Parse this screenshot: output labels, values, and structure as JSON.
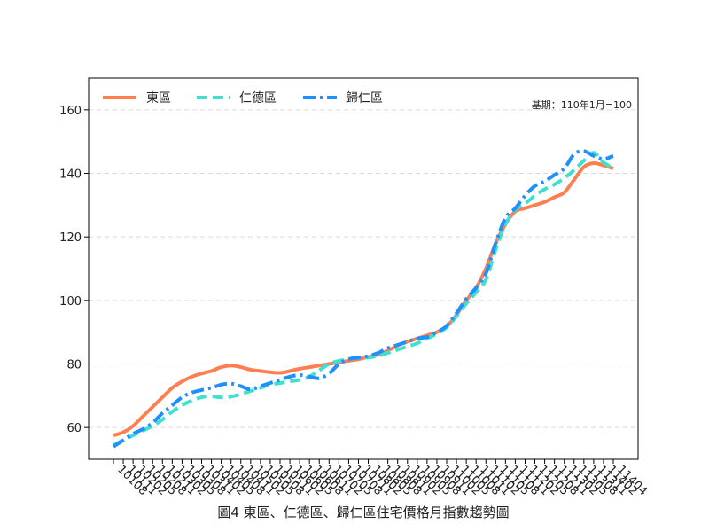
{
  "chart_data": {
    "type": "line",
    "title": "",
    "xlabel": "圖4 東區、仁德區、歸仁區住宅價格月指數趨勢圖",
    "ylabel": "",
    "note": "基期：110年1月=100",
    "ylim": [
      50,
      170
    ],
    "yticks": [
      60,
      80,
      100,
      120,
      140,
      160
    ],
    "grid": "horizontal-dashed",
    "legend_placement": "top-left",
    "categories": [
      "10108",
      "10111",
      "10202",
      "10205",
      "10208",
      "10211",
      "10302",
      "10305",
      "10308",
      "10311",
      "10402",
      "10405",
      "10408",
      "10411",
      "10502",
      "10505",
      "10508",
      "10511",
      "10602",
      "10605",
      "10608",
      "10611",
      "10702",
      "10705",
      "10708",
      "10711",
      "10802",
      "10805",
      "10808",
      "10811",
      "10902",
      "10905",
      "10908",
      "10911",
      "11002",
      "11005",
      "11008",
      "11011",
      "11102",
      "11105",
      "11108",
      "11111",
      "11202",
      "11205",
      "11208",
      "11211",
      "11302",
      "11305",
      "11308",
      "11311",
      "11402",
      "11404"
    ],
    "series": [
      {
        "name": "東區",
        "color": "#FF7F50",
        "dash": "solid",
        "values": [
          57.5,
          58.5,
          60.5,
          63.5,
          66.5,
          69.5,
          72.5,
          74.5,
          76,
          77,
          77.8,
          79,
          79.5,
          79,
          78.2,
          77.8,
          77.4,
          77.2,
          77.8,
          78.5,
          79,
          79.5,
          80,
          80.5,
          81,
          81.5,
          82.2,
          83,
          84.2,
          85.8,
          87,
          88,
          89,
          90,
          91.8,
          95.5,
          100,
          104,
          110,
          118,
          124,
          128,
          129,
          130,
          131,
          132.5,
          134,
          138,
          142,
          143.2,
          142.5,
          141.5
        ]
      },
      {
        "name": "仁德區",
        "color": "#40E0D0",
        "dash": "dashed",
        "values": [
          54.5,
          56,
          57.5,
          59,
          60.5,
          62.5,
          65,
          67,
          68.5,
          69.5,
          69.8,
          69.5,
          69.7,
          70.5,
          71.5,
          72.5,
          73.5,
          74,
          74.5,
          75,
          76,
          78,
          80,
          81,
          81.5,
          82,
          82,
          82.5,
          83.5,
          84.5,
          85.5,
          86.5,
          88,
          89.5,
          91.5,
          95,
          99,
          102.5,
          106.5,
          116,
          124,
          128.5,
          130.5,
          133,
          135,
          136.5,
          138.5,
          141,
          144,
          146.5,
          143.5,
          141.5
        ]
      },
      {
        "name": "歸仁區",
        "color": "#1E90FF",
        "dash": "dashdot",
        "values": [
          54,
          56,
          58,
          59.5,
          61.5,
          64.5,
          67,
          69.5,
          71,
          71.8,
          72.5,
          73.5,
          73.8,
          73,
          72,
          73,
          74,
          75,
          76,
          76.5,
          76,
          75.5,
          77,
          80,
          81.5,
          82,
          82.5,
          83.5,
          85,
          86,
          87,
          88,
          88.5,
          90,
          92,
          96,
          100.5,
          104,
          108.5,
          118,
          126,
          129,
          133,
          136,
          137.5,
          139.5,
          141.5,
          146,
          147,
          145.5,
          144.5,
          145.5
        ]
      }
    ]
  }
}
